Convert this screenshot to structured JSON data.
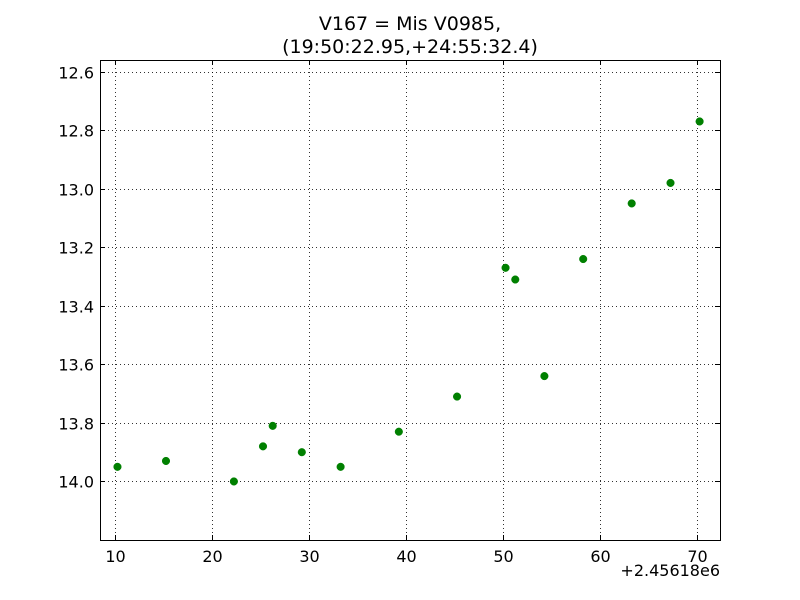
{
  "chart_data": {
    "type": "scatter",
    "title_line1": "V167 = Mis V0985,",
    "title_line2": "(19:50:22.95,+24:55:32.4)",
    "xlabel": "",
    "ylabel": "",
    "x_offset_label": "+2.45618e6",
    "xlim": [
      8.5,
      72.4
    ],
    "ylim": [
      14.2,
      12.56
    ],
    "y_inverted": true,
    "x_ticks": [
      10,
      20,
      30,
      40,
      50,
      60,
      70
    ],
    "y_ticks": [
      12.6,
      12.8,
      13.0,
      13.2,
      13.4,
      13.6,
      13.8,
      14.0
    ],
    "y_tick_labels": [
      "12.6",
      "12.8",
      "13.0",
      "13.2",
      "13.4",
      "13.6",
      "13.8",
      "14.0"
    ],
    "grid": true,
    "marker_color": "#008000",
    "series": [
      {
        "points": [
          {
            "x": 10.3,
            "y": 13.95
          },
          {
            "x": 15.3,
            "y": 13.93
          },
          {
            "x": 22.3,
            "y": 14.0
          },
          {
            "x": 25.3,
            "y": 13.88
          },
          {
            "x": 26.3,
            "y": 13.81
          },
          {
            "x": 29.3,
            "y": 13.9
          },
          {
            "x": 33.3,
            "y": 13.95
          },
          {
            "x": 39.3,
            "y": 13.83
          },
          {
            "x": 45.3,
            "y": 13.71
          },
          {
            "x": 50.3,
            "y": 13.27
          },
          {
            "x": 51.3,
            "y": 13.31
          },
          {
            "x": 54.3,
            "y": 13.64
          },
          {
            "x": 58.3,
            "y": 13.24
          },
          {
            "x": 63.3,
            "y": 13.05
          },
          {
            "x": 67.3,
            "y": 12.98
          },
          {
            "x": 70.3,
            "y": 12.77
          }
        ]
      }
    ]
  }
}
